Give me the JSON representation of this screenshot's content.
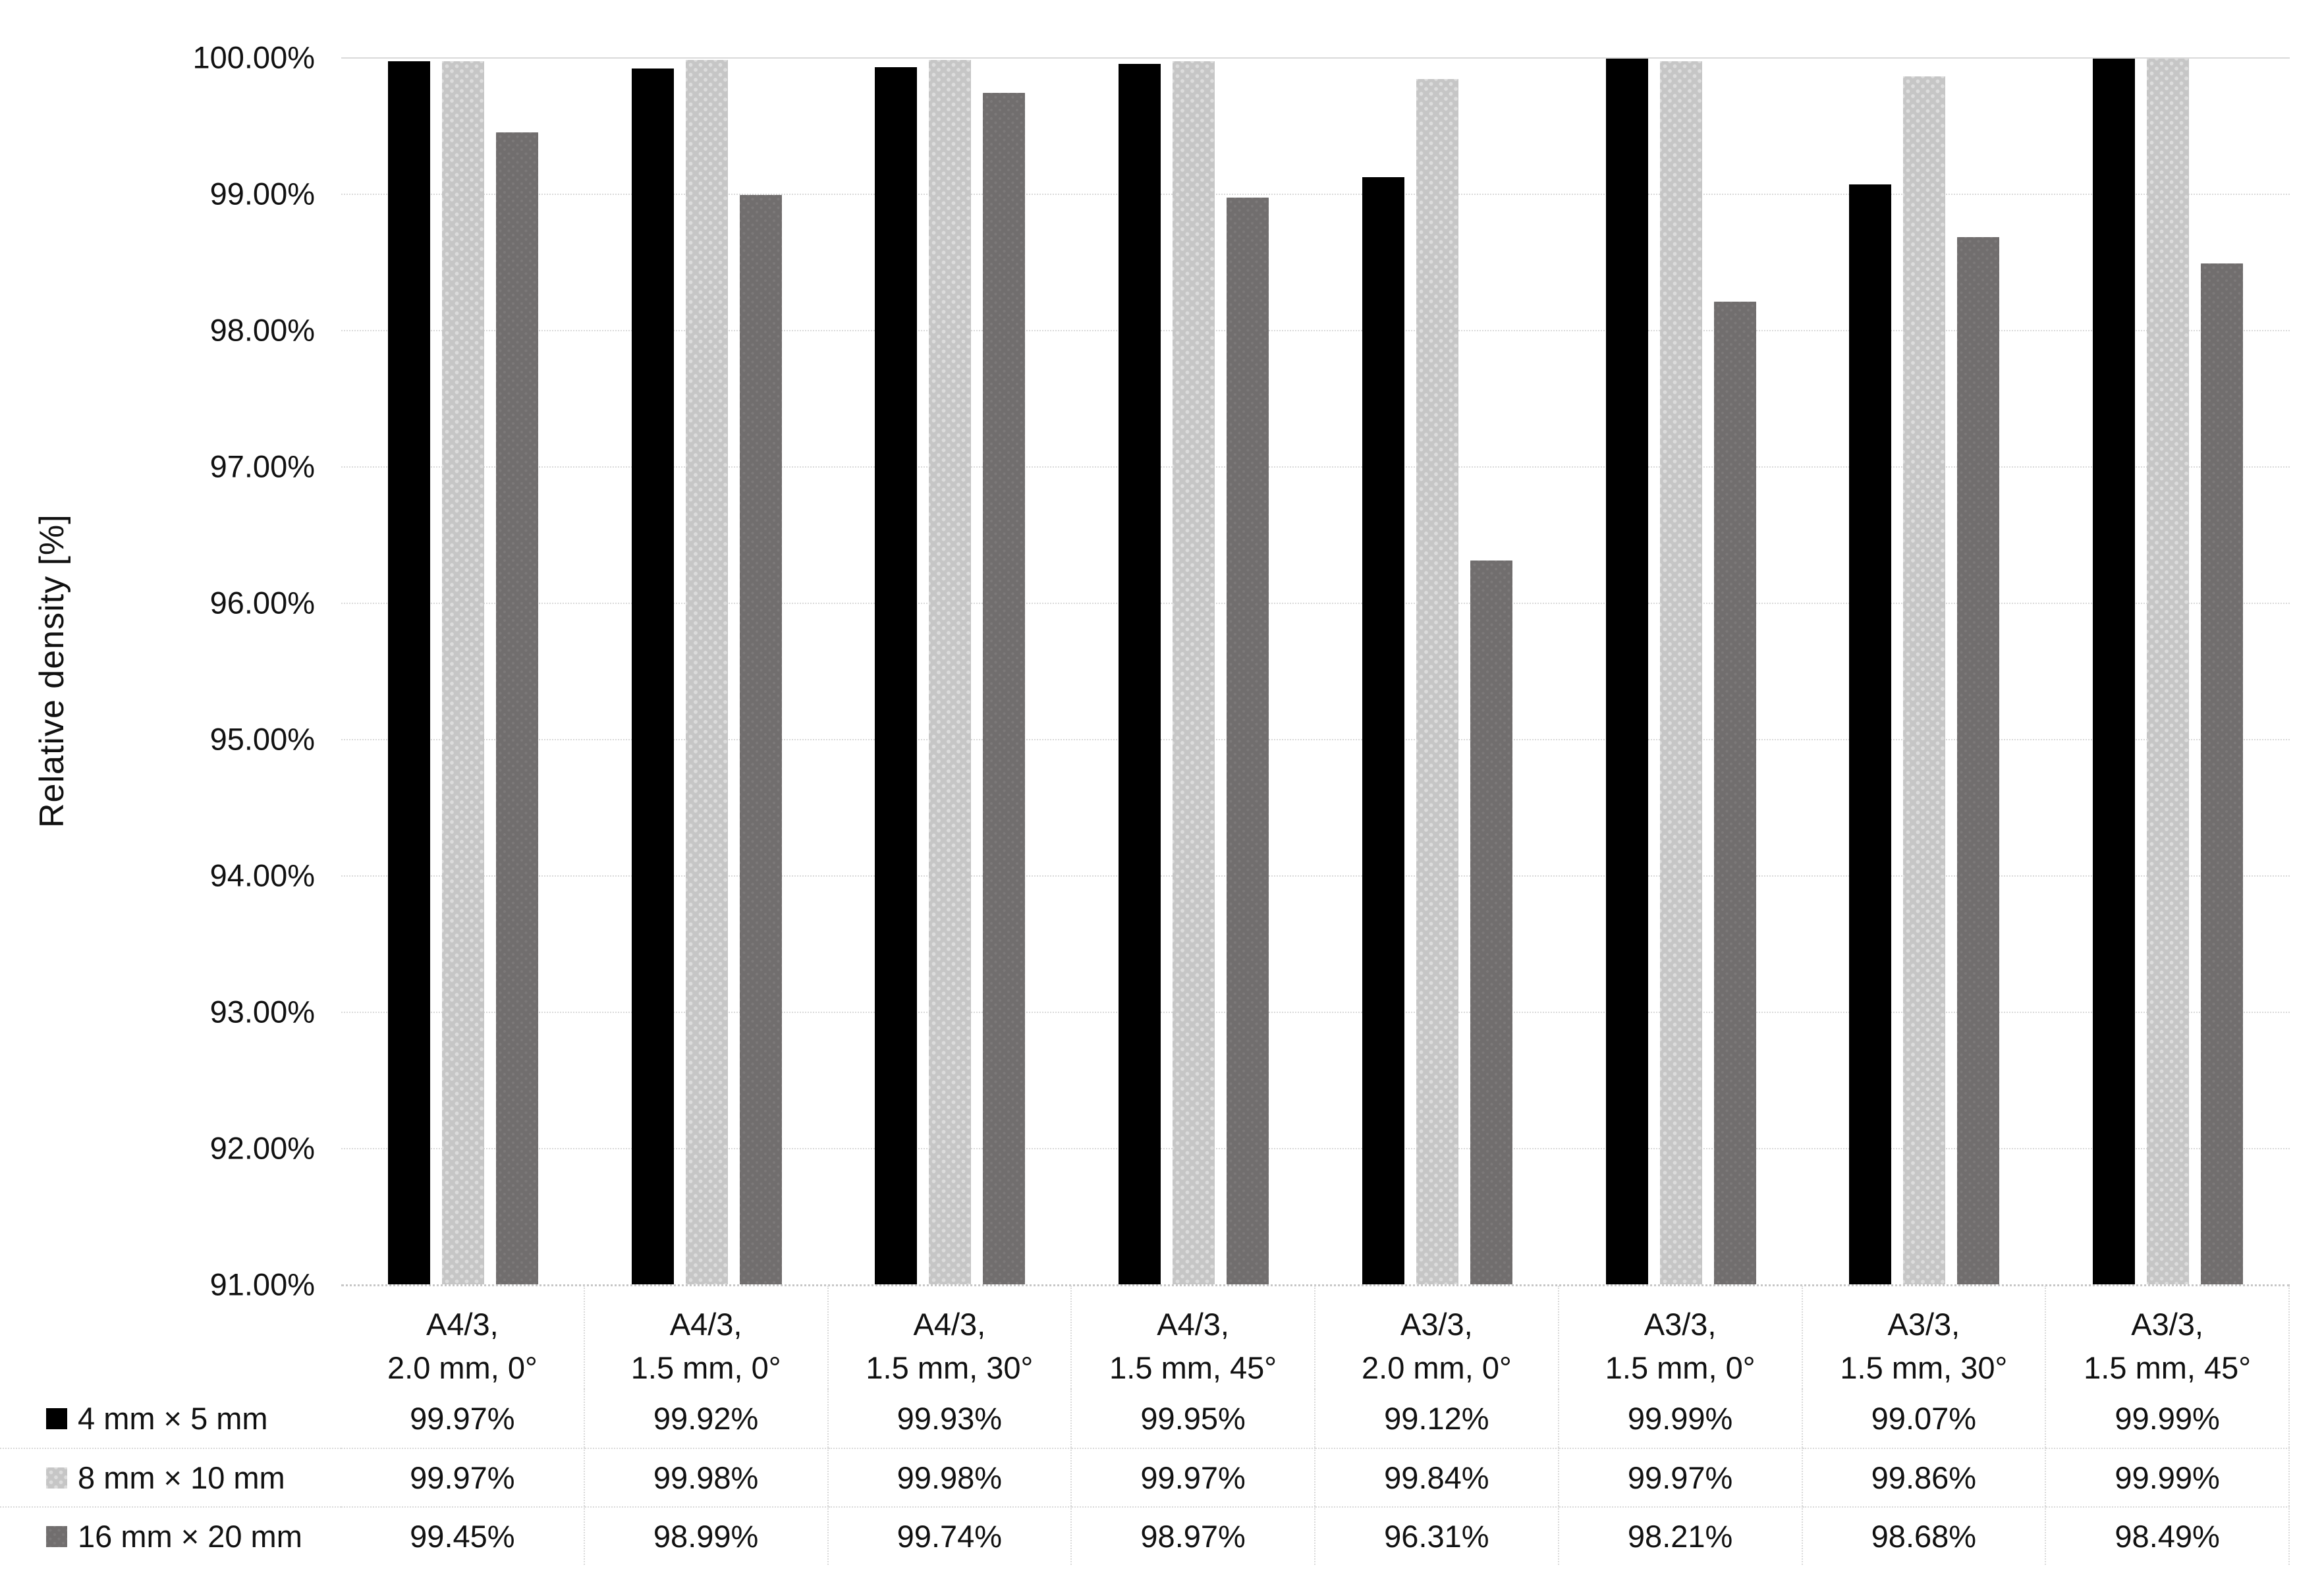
{
  "chart_data": {
    "type": "bar",
    "title": "",
    "ylabel": "Relative density [%]",
    "xlabel": "",
    "ylim": [
      91,
      100
    ],
    "ytick_step": 1,
    "grid": true,
    "legend_position": "table-left",
    "ytick_labels": [
      "100.00%",
      "99.00%",
      "98.00%",
      "97.00%",
      "96.00%",
      "95.00%",
      "94.00%",
      "93.00%",
      "92.00%",
      "91.00%"
    ],
    "categories": [
      {
        "line1": "A4/3,",
        "line2": "2.0 mm, 0°"
      },
      {
        "line1": "A4/3,",
        "line2": "1.5 mm, 0°"
      },
      {
        "line1": "A4/3,",
        "line2": "1.5 mm, 30°"
      },
      {
        "line1": "A4/3,",
        "line2": "1.5 mm, 45°"
      },
      {
        "line1": "A3/3,",
        "line2": "2.0 mm, 0°"
      },
      {
        "line1": "A3/3,",
        "line2": "1.5 mm, 0°"
      },
      {
        "line1": "A3/3,",
        "line2": "1.5 mm, 30°"
      },
      {
        "line1": "A3/3,",
        "line2": "1.5 mm, 45°"
      }
    ],
    "series": [
      {
        "name": "4 mm × 5 mm",
        "color": "#000000",
        "pattern": "solid",
        "values": [
          99.97,
          99.92,
          99.93,
          99.95,
          99.12,
          99.99,
          99.07,
          99.99
        ],
        "labels": [
          "99.97%",
          "99.92%",
          "99.93%",
          "99.95%",
          "99.12%",
          "99.99%",
          "99.07%",
          "99.99%"
        ]
      },
      {
        "name": "8 mm × 10 mm",
        "color": "#c6c6c6",
        "pattern": "light-dotted",
        "values": [
          99.97,
          99.98,
          99.98,
          99.97,
          99.84,
          99.97,
          99.86,
          99.99
        ],
        "labels": [
          "99.97%",
          "99.98%",
          "99.98%",
          "99.97%",
          "99.84%",
          "99.97%",
          "99.86%",
          "99.99%"
        ]
      },
      {
        "name": "16 mm × 20 mm",
        "color": "#716e6e",
        "pattern": "dark-dotted",
        "values": [
          99.45,
          98.99,
          99.74,
          98.97,
          96.31,
          98.21,
          98.68,
          98.49
        ],
        "labels": [
          "99.45%",
          "98.99%",
          "99.74%",
          "98.97%",
          "96.31%",
          "98.21%",
          "98.68%",
          "98.49%"
        ]
      }
    ],
    "gridline_color": "#d9d9d9",
    "axisline_color": "#c6c6c6"
  }
}
